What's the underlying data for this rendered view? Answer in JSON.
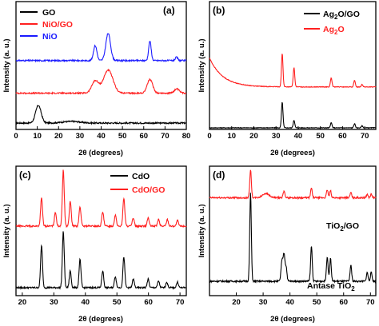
{
  "chart_data": [
    {
      "panel": "(a)",
      "type": "line",
      "xlabel": "2θ (degrees)",
      "ylabel": "Intensity (a. u.)",
      "xlim": [
        0,
        80
      ],
      "xticks": [
        0,
        10,
        20,
        30,
        40,
        50,
        60,
        70,
        80
      ],
      "legend_position": "top-left",
      "series": [
        {
          "name": "GO",
          "color": "#000000",
          "offset": 0,
          "peaks": [
            [
              10.5,
              0.65,
              1.3
            ],
            [
              26.0,
              0.06,
              4.0
            ]
          ]
        },
        {
          "name": "NiO/GO",
          "color": "#ff2020",
          "offset": 1.1,
          "peaks": [
            [
              37.2,
              0.45,
              1.6
            ],
            [
              43.3,
              0.85,
              2.2
            ],
            [
              62.9,
              0.5,
              1.3
            ],
            [
              75.5,
              0.15,
              1.2
            ]
          ]
        },
        {
          "name": "NiO",
          "color": "#1a1aff",
          "offset": 2.3,
          "peaks": [
            [
              37.2,
              0.55,
              0.8
            ],
            [
              43.3,
              1.0,
              1.1
            ],
            [
              62.9,
              0.72,
              0.6
            ],
            [
              75.4,
              0.12,
              0.6
            ]
          ]
        }
      ]
    },
    {
      "panel": "(b)",
      "type": "line",
      "xlabel": "2θ (degrees)",
      "ylabel": "Intensity (a. u.)",
      "xlim": [
        0,
        75
      ],
      "xticks": [
        0,
        10,
        20,
        30,
        40,
        50,
        60,
        70
      ],
      "legend_position": "top-right",
      "series": [
        {
          "name": "Ag2O/GO",
          "color": "#000000",
          "offset": 0,
          "peaks": [
            [
              32.8,
              1.0,
              0.35
            ],
            [
              38.1,
              0.3,
              0.35
            ],
            [
              54.9,
              0.2,
              0.35
            ],
            [
              65.4,
              0.16,
              0.35
            ],
            [
              68.8,
              0.08,
              0.35
            ]
          ]
        },
        {
          "name": "Ag2O",
          "color": "#ff2020",
          "offset": 1.6,
          "peaks": [
            [
              32.8,
              1.3,
              0.35
            ],
            [
              38.1,
              0.75,
              0.35
            ],
            [
              54.9,
              0.35,
              0.35
            ],
            [
              65.4,
              0.25,
              0.35
            ],
            [
              68.8,
              0.1,
              0.35
            ]
          ]
        }
      ]
    },
    {
      "panel": "(c)",
      "type": "line",
      "xlabel": "2θ (degrees)",
      "ylabel": "Intensity (a. u.)",
      "xlim": [
        18,
        72
      ],
      "xticks": [
        20,
        30,
        40,
        50,
        60,
        70
      ],
      "legend_position": "top-right",
      "series": [
        {
          "name": "CdO",
          "color": "#000000",
          "offset": 0,
          "peaks": [
            [
              26.1,
              0.75,
              0.3
            ],
            [
              33.0,
              1.0,
              0.3
            ],
            [
              35.2,
              0.3,
              0.3
            ],
            [
              38.3,
              0.5,
              0.3
            ],
            [
              45.5,
              0.3,
              0.3
            ],
            [
              49.5,
              0.2,
              0.3
            ],
            [
              52.2,
              0.55,
              0.3
            ],
            [
              55.2,
              0.15,
              0.3
            ],
            [
              59.9,
              0.15,
              0.3
            ],
            [
              63.2,
              0.12,
              0.3
            ],
            [
              65.8,
              0.1,
              0.3
            ],
            [
              69.2,
              0.1,
              0.3
            ]
          ]
        },
        {
          "name": "CdO/GO",
          "color": "#ff2020",
          "offset": 1.1,
          "peaks": [
            [
              26.1,
              0.5,
              0.3
            ],
            [
              30.5,
              0.25,
              0.3
            ],
            [
              33.0,
              1.0,
              0.3
            ],
            [
              35.2,
              0.45,
              0.3
            ],
            [
              38.3,
              0.35,
              0.3
            ],
            [
              45.5,
              0.25,
              0.3
            ],
            [
              49.5,
              0.2,
              0.3
            ],
            [
              52.2,
              0.5,
              0.3
            ],
            [
              55.2,
              0.15,
              0.3
            ],
            [
              59.9,
              0.15,
              0.3
            ],
            [
              63.2,
              0.12,
              0.3
            ],
            [
              66.0,
              0.12,
              0.3
            ],
            [
              69.2,
              0.1,
              0.3
            ]
          ]
        }
      ]
    },
    {
      "panel": "(d)",
      "type": "line",
      "xlabel": "2θ (degrees)",
      "ylabel": "Intensity (a. u.)",
      "xlim": [
        10,
        72
      ],
      "xticks": [
        20,
        30,
        40,
        50,
        60,
        70
      ],
      "series": [
        {
          "name": "Antase TiO2",
          "color": "#000000",
          "offset": 0,
          "peaks": [
            [
              25.3,
              1.0,
              0.3
            ],
            [
              37.0,
              0.22,
              0.35
            ],
            [
              37.8,
              0.3,
              0.35
            ],
            [
              38.6,
              0.15,
              0.3
            ],
            [
              48.0,
              0.4,
              0.3
            ],
            [
              53.9,
              0.28,
              0.3
            ],
            [
              55.1,
              0.26,
              0.3
            ],
            [
              62.7,
              0.18,
              0.3
            ],
            [
              68.8,
              0.1,
              0.3
            ],
            [
              70.3,
              0.1,
              0.3
            ]
          ]
        },
        {
          "name": "TiO2/GO",
          "color": "#ff2020",
          "offset": 0.95,
          "peaks": [
            [
              25.3,
              0.32,
              0.3
            ],
            [
              31.0,
              0.05,
              1.2
            ],
            [
              37.8,
              0.07,
              0.35
            ],
            [
              48.0,
              0.11,
              0.3
            ],
            [
              53.9,
              0.09,
              0.3
            ],
            [
              55.1,
              0.08,
              0.3
            ],
            [
              62.7,
              0.06,
              0.3
            ],
            [
              68.8,
              0.04,
              0.3
            ],
            [
              70.3,
              0.04,
              0.3
            ]
          ]
        }
      ]
    }
  ],
  "legends": {
    "a": [
      "GO",
      "NiO/GO",
      "NiO"
    ],
    "b": {
      "s1_main": "Ag",
      "s1_sub": "2",
      "s1_rest": "O/GO",
      "s2_main": "Ag",
      "s2_sub": "2",
      "s2_rest": "O"
    },
    "c": [
      "CdO",
      "CdO/GO"
    ]
  },
  "annotations_d": {
    "tio2go_main": "TiO",
    "tio2go_sub": "2",
    "tio2go_rest": "/GO",
    "antase_main": "Antase TiO",
    "antase_sub": "2"
  },
  "axis_titles": {
    "ylabel": "Intensity (a. u.)",
    "xlabel": "2θ (degrees)"
  }
}
